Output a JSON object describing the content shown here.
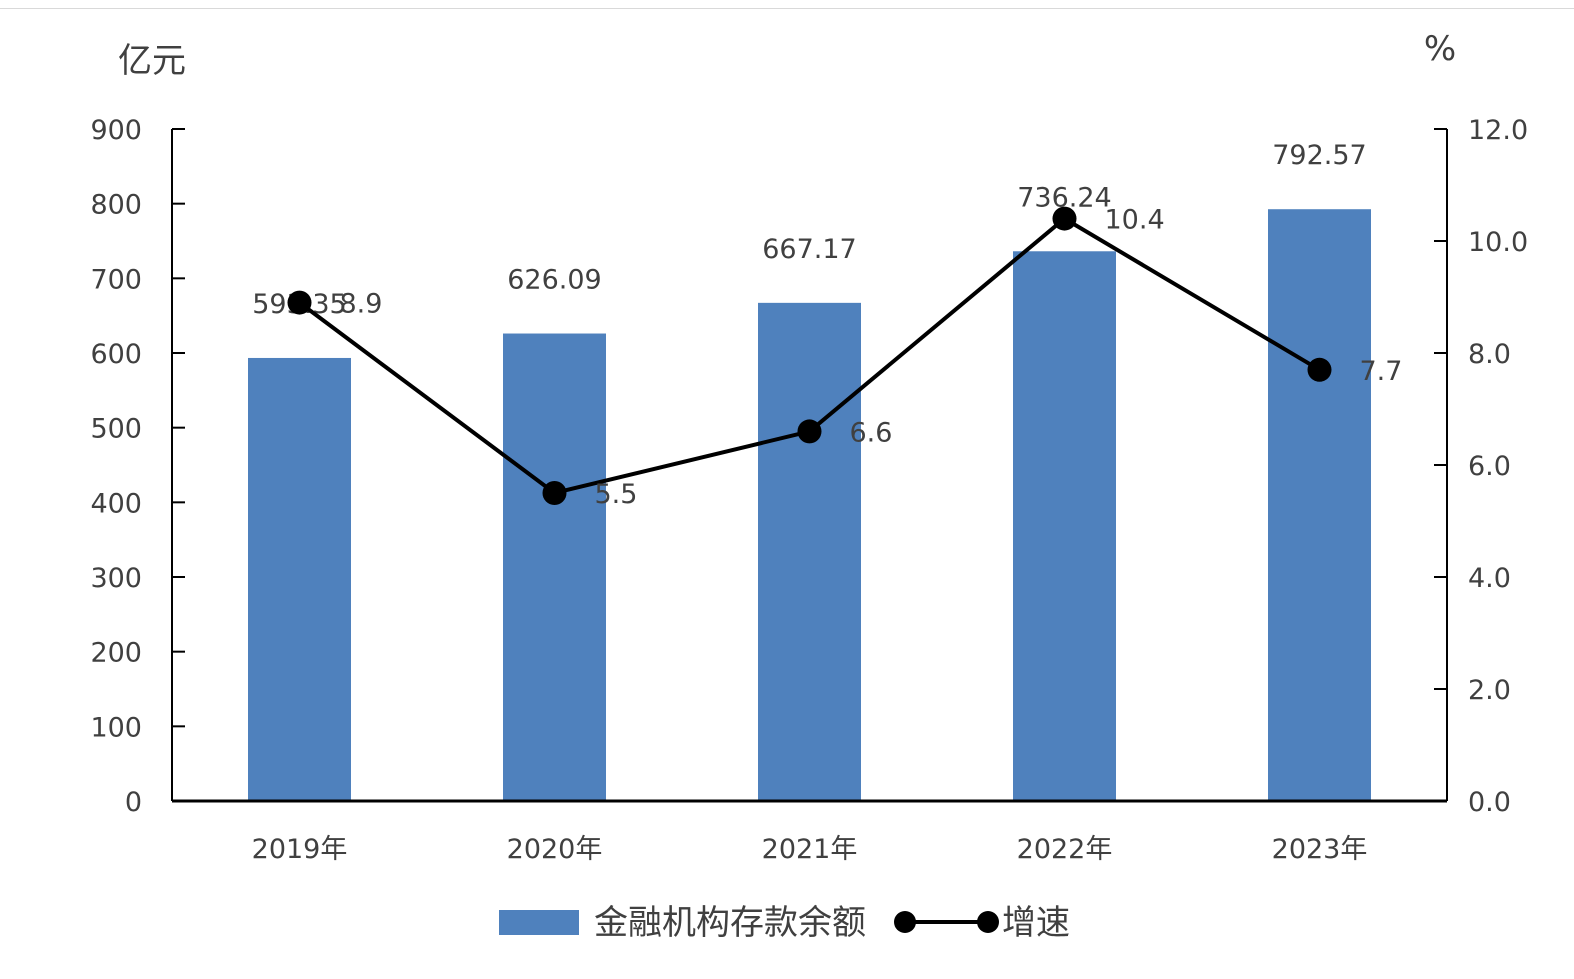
{
  "chart_data": {
    "type": "bar",
    "categories": [
      "2019年",
      "2020年",
      "2021年",
      "2022年",
      "2023年"
    ],
    "left_axis": {
      "unit": "亿元",
      "ylim": [
        0,
        900
      ],
      "ticks": [
        "0",
        "100",
        "200",
        "300",
        "400",
        "500",
        "600",
        "700",
        "800",
        "900"
      ]
    },
    "right_axis": {
      "unit": "%",
      "ylim": [
        0,
        12
      ],
      "ticks": [
        "0.0",
        "2.0",
        "4.0",
        "6.0",
        "8.0",
        "10.0",
        "12.0"
      ]
    },
    "series": [
      {
        "name": "金融机构存款余额",
        "type": "bar",
        "axis": "left",
        "values": [
          593.35,
          626.09,
          667.17,
          736.24,
          792.57
        ],
        "labels": [
          "593.35",
          "626.09",
          "667.17",
          "736.24",
          "792.57"
        ],
        "color": "#4f81bd"
      },
      {
        "name": "增速",
        "type": "line",
        "axis": "right",
        "values": [
          8.9,
          5.5,
          6.6,
          10.4,
          7.7
        ],
        "labels": [
          "8.9",
          "5.5",
          "6.6",
          "10.4",
          "7.7"
        ],
        "color": "#000000"
      }
    ],
    "legend_position": "bottom",
    "grid": false
  }
}
